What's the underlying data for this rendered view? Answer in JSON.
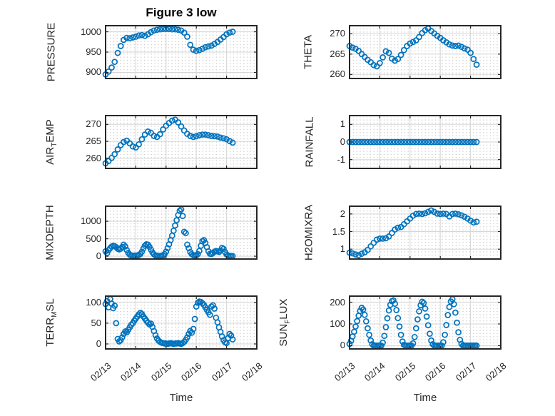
{
  "figure": {
    "title": "Figure 3 low",
    "x_axis_label": "Time"
  },
  "colors": {
    "marker": "#0072BD",
    "axis": "#262626",
    "major_grid": "#d6d6d6",
    "minor_grid_dot": "#c6c6c6",
    "text": "#262626",
    "background": "#ffffff"
  },
  "chart_data": {
    "type": "scatter",
    "marker": "open-circle",
    "title": "Figure 3 low",
    "xlabel": "Time",
    "layout": "4x2 subplots, shared time axis",
    "grid": "major solid + minor dotted",
    "legend_position": "none",
    "xlim": [
      13,
      18
    ],
    "x_ticks": [
      13,
      14,
      15,
      16,
      17,
      18
    ],
    "x_ticklabels": [
      "02/13",
      "02/14",
      "02/15",
      "02/16",
      "02/17",
      "02/18"
    ],
    "subplots": [
      {
        "name": "pressure",
        "row": 0,
        "col": 0,
        "ylabel": "PRESSURE",
        "ylabel_parts": [
          {
            "t": "PRESSURE",
            "sub": false
          }
        ],
        "yticks": [
          900,
          950,
          1000
        ],
        "ytick_labels": [
          "900",
          "950",
          "1000"
        ],
        "ylim": [
          885,
          1015
        ],
        "x_start": 13.0,
        "x_step": 0.1,
        "y": [
          895,
          902,
          912,
          926,
          948,
          965,
          980,
          985,
          984,
          986,
          988,
          991,
          992,
          990,
          994,
          999,
          1003,
          1005,
          1006,
          1007,
          1007,
          1007,
          1006,
          1006,
          1005,
          1003,
          998,
          988,
          968,
          956,
          953,
          955,
          958,
          962,
          964,
          966,
          970,
          975,
          981,
          987,
          994,
          998,
          1000
        ]
      },
      {
        "name": "theta",
        "row": 0,
        "col": 1,
        "ylabel": "THETA",
        "ylabel_parts": [
          {
            "t": "THETA",
            "sub": false
          }
        ],
        "yticks": [
          260,
          265,
          270
        ],
        "ytick_labels": [
          "260",
          "265",
          "270"
        ],
        "ylim": [
          259,
          272
        ],
        "x_start": 13.0,
        "x_step": 0.1,
        "y": [
          267.0,
          266.6,
          266.3,
          265.8,
          265.0,
          264.3,
          263.6,
          263.0,
          262.3,
          262.0,
          262.8,
          264.2,
          265.7,
          265.3,
          263.9,
          263.4,
          263.8,
          264.8,
          266.0,
          267.0,
          267.6,
          268.0,
          268.4,
          269.2,
          270.2,
          270.9,
          271.3,
          270.7,
          270.1,
          269.5,
          269.0,
          268.4,
          267.9,
          267.4,
          267.1,
          267.0,
          267.1,
          266.8,
          266.4,
          266.1,
          265.3,
          263.8,
          262.4
        ]
      },
      {
        "name": "air_temp",
        "row": 1,
        "col": 0,
        "ylabel": "AIR_TEMP",
        "ylabel_parts": [
          {
            "t": "AIR",
            "sub": false
          },
          {
            "t": "T",
            "sub": true
          },
          {
            "t": "EMP",
            "sub": false
          }
        ],
        "yticks": [
          260,
          265,
          270
        ],
        "ytick_labels": [
          "260",
          "265",
          "270"
        ],
        "ylim": [
          257,
          272.6
        ],
        "x_start": 13.0,
        "x_step": 0.1,
        "y": [
          258.5,
          259.2,
          260.1,
          261.2,
          262.6,
          263.9,
          264.8,
          265.2,
          264.4,
          263.5,
          263.2,
          264.1,
          265.6,
          267.0,
          267.9,
          267.5,
          266.6,
          266.3,
          267.1,
          268.5,
          269.6,
          270.4,
          271.1,
          271.4,
          270.6,
          269.4,
          268.2,
          267.2,
          266.6,
          266.3,
          266.5,
          266.8,
          267.0,
          267.0,
          266.8,
          266.6,
          266.5,
          266.4,
          266.1,
          265.9,
          265.6,
          265.1,
          264.6
        ]
      },
      {
        "name": "rainfall",
        "row": 1,
        "col": 1,
        "ylabel": "RAINFALL",
        "ylabel_parts": [
          {
            "t": "RAINFALL",
            "sub": false
          }
        ],
        "yticks": [
          -1,
          0,
          1
        ],
        "ytick_labels": [
          "-1",
          "0",
          "1"
        ],
        "ylim": [
          -1.5,
          1.5
        ],
        "x_start": 13.0,
        "x_step": 0.1,
        "y": [
          0,
          0,
          0,
          0,
          0,
          0,
          0,
          0,
          0,
          0,
          0,
          0,
          0,
          0,
          0,
          0,
          0,
          0,
          0,
          0,
          0,
          0,
          0,
          0,
          0,
          0,
          0,
          0,
          0,
          0,
          0,
          0,
          0,
          0,
          0,
          0,
          0,
          0,
          0,
          0,
          0,
          0,
          0
        ]
      },
      {
        "name": "mixdepth",
        "row": 2,
        "col": 0,
        "ylabel": "MIXDEPTH",
        "ylabel_parts": [
          {
            "t": "MIXDEPTH",
            "sub": false
          }
        ],
        "yticks": [
          0,
          500,
          1000
        ],
        "ytick_labels": [
          "0",
          "500",
          "1000"
        ],
        "ylim": [
          -80,
          1430
        ],
        "x_start": 13.0,
        "x_step": 0.05,
        "y": [
          140,
          90,
          170,
          230,
          275,
          300,
          290,
          260,
          215,
          195,
          215,
          265,
          330,
          280,
          180,
          95,
          45,
          25,
          15,
          15,
          20,
          25,
          35,
          65,
          130,
          220,
          300,
          340,
          330,
          270,
          190,
          110,
          55,
          25,
          15,
          10,
          10,
          15,
          25,
          60,
          130,
          230,
          340,
          460,
          590,
          730,
          880,
          1030,
          1180,
          1300,
          1340,
          1150,
          700,
          660,
          330,
          230,
          120,
          60,
          30,
          20,
          25,
          60,
          150,
          300,
          430,
          460,
          380,
          260,
          140,
          70,
          60,
          90,
          130,
          150,
          140,
          120,
          160,
          240,
          210,
          120,
          50,
          20,
          10,
          8,
          5
        ]
      },
      {
        "name": "h2omixra",
        "row": 2,
        "col": 1,
        "ylabel": "H2OMIXRA",
        "ylabel_parts": [
          {
            "t": "H2OMIXRA",
            "sub": false
          }
        ],
        "yticks": [
          1,
          1.5,
          2
        ],
        "ytick_labels": [
          "1",
          "1.5",
          "2"
        ],
        "ylim": [
          0.72,
          2.22
        ],
        "x_start": 13.0,
        "x_step": 0.1,
        "y": [
          0.9,
          0.88,
          0.85,
          0.83,
          0.87,
          0.91,
          0.98,
          1.08,
          1.18,
          1.27,
          1.3,
          1.3,
          1.31,
          1.36,
          1.46,
          1.56,
          1.61,
          1.63,
          1.71,
          1.79,
          1.87,
          1.95,
          2.0,
          2.01,
          2.0,
          2.02,
          2.06,
          2.1,
          2.06,
          2.01,
          2.0,
          2.01,
          2.0,
          1.93,
          2.0,
          2.01,
          1.99,
          1.96,
          1.92,
          1.87,
          1.81,
          1.76,
          1.78
        ]
      },
      {
        "name": "terr_msl",
        "row": 3,
        "col": 0,
        "ylabel": "TERR_MSL",
        "ylabel_parts": [
          {
            "t": "TERR",
            "sub": false
          },
          {
            "t": "M",
            "sub": true
          },
          {
            "t": "SL",
            "sub": false
          }
        ],
        "yticks": [
          0,
          50,
          100
        ],
        "ytick_labels": [
          "0",
          "50",
          "100"
        ],
        "ylim": [
          -12,
          115
        ],
        "x_start": 13.0,
        "x_step": 0.05,
        "y": [
          96,
          103,
          88,
          108,
          97,
          86,
          92,
          50,
          12,
          6,
          9,
          16,
          24,
          30,
          28,
          34,
          40,
          46,
          50,
          56,
          61,
          66,
          71,
          75,
          72,
          66,
          61,
          56,
          51,
          47,
          49,
          41,
          31,
          21,
          13,
          8,
          5,
          3,
          2,
          1,
          1,
          0,
          1,
          2,
          1,
          0,
          1,
          1,
          2,
          1,
          0,
          2,
          5,
          10,
          16,
          24,
          31,
          27,
          36,
          60,
          90,
          99,
          102,
          101,
          98,
          94,
          88,
          82,
          76,
          70,
          90,
          93,
          85,
          63,
          52,
          40,
          29,
          18,
          9,
          4,
          2,
          14,
          24,
          20,
          11
        ]
      },
      {
        "name": "sun_flux",
        "row": 3,
        "col": 1,
        "ylabel": "SUN_FLUX",
        "ylabel_parts": [
          {
            "t": "SUN",
            "sub": false
          },
          {
            "t": "F",
            "sub": true
          },
          {
            "t": "LUX",
            "sub": false
          }
        ],
        "yticks": [
          0,
          100,
          200
        ],
        "ytick_labels": [
          "0",
          "100",
          "200"
        ],
        "ylim": [
          -15,
          228
        ],
        "x_start": 13.0,
        "x_step": 0.05,
        "y": [
          8,
          22,
          42,
          64,
          88,
          113,
          138,
          160,
          174,
          166,
          142,
          112,
          80,
          50,
          24,
          7,
          0,
          0,
          0,
          0,
          0,
          0,
          14,
          45,
          85,
          126,
          162,
          188,
          205,
          209,
          193,
          164,
          127,
          88,
          50,
          19,
          4,
          0,
          0,
          0,
          0,
          0,
          11,
          40,
          80,
          121,
          158,
          186,
          202,
          196,
          171,
          134,
          94,
          55,
          24,
          7,
          0,
          0,
          0,
          0,
          0,
          0,
          16,
          50,
          95,
          141,
          178,
          203,
          214,
          191,
          152,
          106,
          62,
          27,
          8,
          0,
          0,
          0,
          0,
          0,
          0,
          0,
          0,
          0,
          0
        ]
      }
    ]
  }
}
